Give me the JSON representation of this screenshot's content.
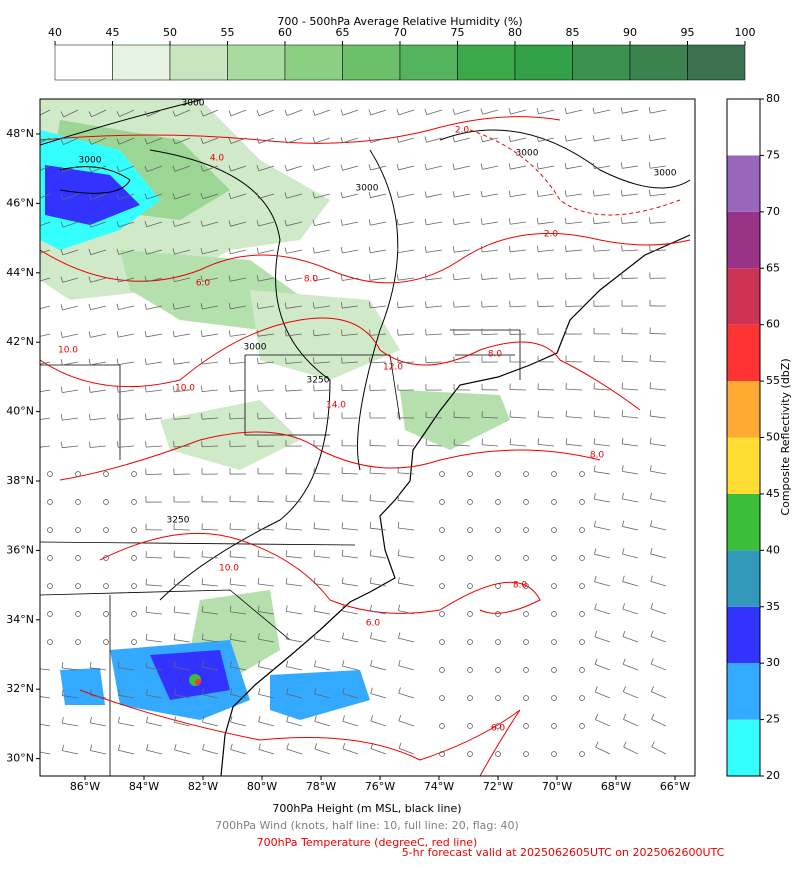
{
  "top_colorbar": {
    "title": "700 - 500hPa Average Relative Humidity (%)",
    "ticks": [
      40,
      45,
      50,
      55,
      60,
      65,
      70,
      75,
      80,
      85,
      90,
      95,
      100
    ],
    "colors": [
      "#ffffff",
      "#e5f3e0",
      "#c7e6c0",
      "#a8dba0",
      "#8bcf83",
      "#6dc06a",
      "#54b45d",
      "#3ba94a",
      "#31a047",
      "#3a9150",
      "#3b824f",
      "#3a724f"
    ]
  },
  "right_colorbar": {
    "label": "Composite Reflectivity (dbZ)",
    "ticks": [
      20,
      25,
      30,
      35,
      40,
      45,
      50,
      55,
      60,
      65,
      70,
      75,
      80
    ],
    "colors": [
      "#33ffff",
      "#33aaff",
      "#3333ff",
      "#3399bb",
      "#3bbf3b",
      "#ffdd33",
      "#ffaa33",
      "#ff3333",
      "#cc3355",
      "#993388",
      "#9966bb",
      "#ffffff"
    ]
  },
  "map": {
    "lat_ticks": [
      {
        "value": 30,
        "label": "30°N"
      },
      {
        "value": 32,
        "label": "32°N"
      },
      {
        "value": 34,
        "label": "34°N"
      },
      {
        "value": 36,
        "label": "36°N"
      },
      {
        "value": 38,
        "label": "38°N"
      },
      {
        "value": 40,
        "label": "40°N"
      },
      {
        "value": 42,
        "label": "42°N"
      },
      {
        "value": 44,
        "label": "44°N"
      },
      {
        "value": 46,
        "label": "46°N"
      },
      {
        "value": 48,
        "label": "48°N"
      }
    ],
    "lon_ticks": [
      {
        "value": -86,
        "label": "86°W"
      },
      {
        "value": -84,
        "label": "84°W"
      },
      {
        "value": -82,
        "label": "82°W"
      },
      {
        "value": -80,
        "label": "80°W"
      },
      {
        "value": -78,
        "label": "78°W"
      },
      {
        "value": -76,
        "label": "76°W"
      },
      {
        "value": -74,
        "label": "74°W"
      },
      {
        "value": -72,
        "label": "72°W"
      },
      {
        "value": -70,
        "label": "70°W"
      },
      {
        "value": -68,
        "label": "68°W"
      },
      {
        "value": -66,
        "label": "66°W"
      }
    ],
    "contour_labels": [
      "3000",
      "3000",
      "3000",
      "3000",
      "3000",
      "3000",
      "2.0",
      "2.0",
      "4.0",
      "6.0",
      "8.0",
      "8.0",
      "10.0",
      "10.0",
      "12.0",
      "14.0",
      "6.0",
      "8.0",
      "6.0",
      "8.0",
      "10.0",
      "3250",
      "3250"
    ]
  },
  "footer": {
    "height": "700hPa Height (m MSL, black line)",
    "wind": "700hPa Wind (knots, half line: 10, full line: 20, flag: 40)",
    "temperature": "700hPa Temperature (degreeC, red line)",
    "valid": "5-hr forecast valid at 2025062605UTC on 2025062600UTC"
  }
}
